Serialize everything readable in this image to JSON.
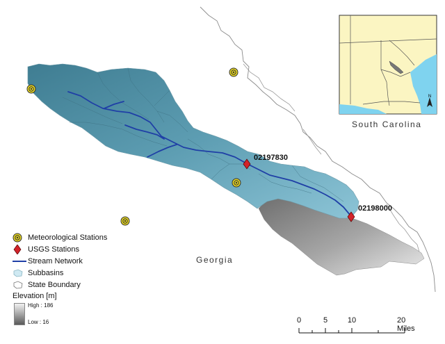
{
  "map": {
    "state_labels": {
      "south_carolina": "South Carolina",
      "georgia": "Georgia"
    },
    "usgs_station_labels": [
      "02197830",
      "02198000"
    ],
    "colors": {
      "subbasin": "#4a8ea3",
      "subbasin_light": "#8fc2d2",
      "stream": "#1f3fa6",
      "usgs_station": "#d2232a",
      "met_station": "#e5d51f",
      "low_elevation": "#9a9a9a"
    }
  },
  "legend": {
    "items": [
      {
        "icon": "meteorological-station-icon",
        "label": "Meteorological Stations"
      },
      {
        "icon": "usgs-station-icon",
        "label": "USGS Stations"
      },
      {
        "icon": "stream-network-icon",
        "label": "Stream Network"
      },
      {
        "icon": "subbasin-icon",
        "label": "Subbasins"
      },
      {
        "icon": "state-boundary-icon",
        "label": "State Boundary"
      }
    ],
    "elevation_title": "Elevation [m]",
    "elevation_high": "High : 186",
    "elevation_low": "Low : 16"
  },
  "scalebar": {
    "ticks": [
      "0",
      "5",
      "10",
      "20 Miles"
    ]
  },
  "inset": {
    "north_label": "N"
  }
}
